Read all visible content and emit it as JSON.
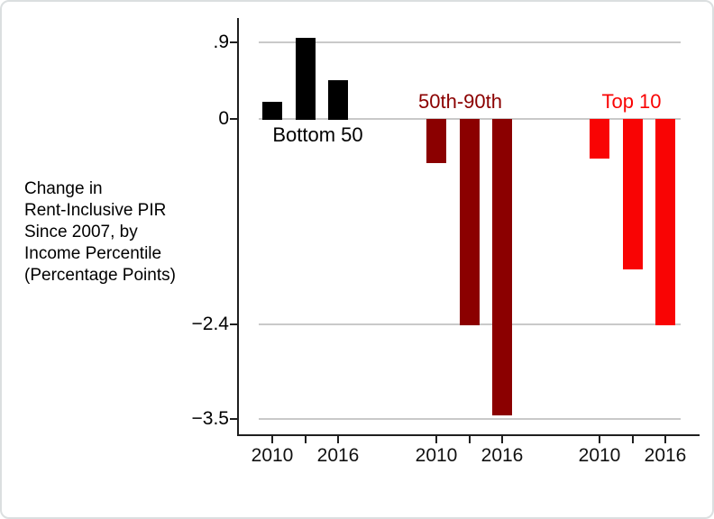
{
  "chart_data": {
    "type": "bar",
    "title": "",
    "ylabel_lines": [
      "Change in",
      "Rent-Inclusive PIR",
      "Since 2007, by",
      "Income Percentile",
      "(Percentage Points)"
    ],
    "groups": [
      {
        "label": "Bottom 50",
        "color": "#000000",
        "bar_years": [
          "2010",
          "",
          "2016"
        ],
        "values": [
          0.2,
          0.95,
          0.45
        ]
      },
      {
        "label": "50th-90th",
        "color": "#8B0000",
        "bar_years": [
          "2010",
          "",
          "2016"
        ],
        "values": [
          -0.5,
          -2.4,
          -3.45
        ]
      },
      {
        "label": "Top 10",
        "color": "#F90404",
        "bar_years": [
          "2010",
          "",
          "2016"
        ],
        "values": [
          -0.45,
          -1.75,
          -2.4
        ]
      }
    ],
    "y_ticks": [
      {
        "value": 0.9,
        "label": ".9"
      },
      {
        "value": 0,
        "label": "0"
      },
      {
        "value": -2.4,
        "label": "−2.4"
      },
      {
        "value": -3.5,
        "label": "−3.5"
      }
    ],
    "ylim": [
      -3.69,
      1.18
    ],
    "grid": true,
    "x_labeled_years": [
      "2010",
      "2016"
    ],
    "colors": {
      "gridline": "#C9C9C9",
      "axis": "#1F1F1F",
      "background": "#FFFFFF",
      "border": "#DBDFE0"
    }
  }
}
